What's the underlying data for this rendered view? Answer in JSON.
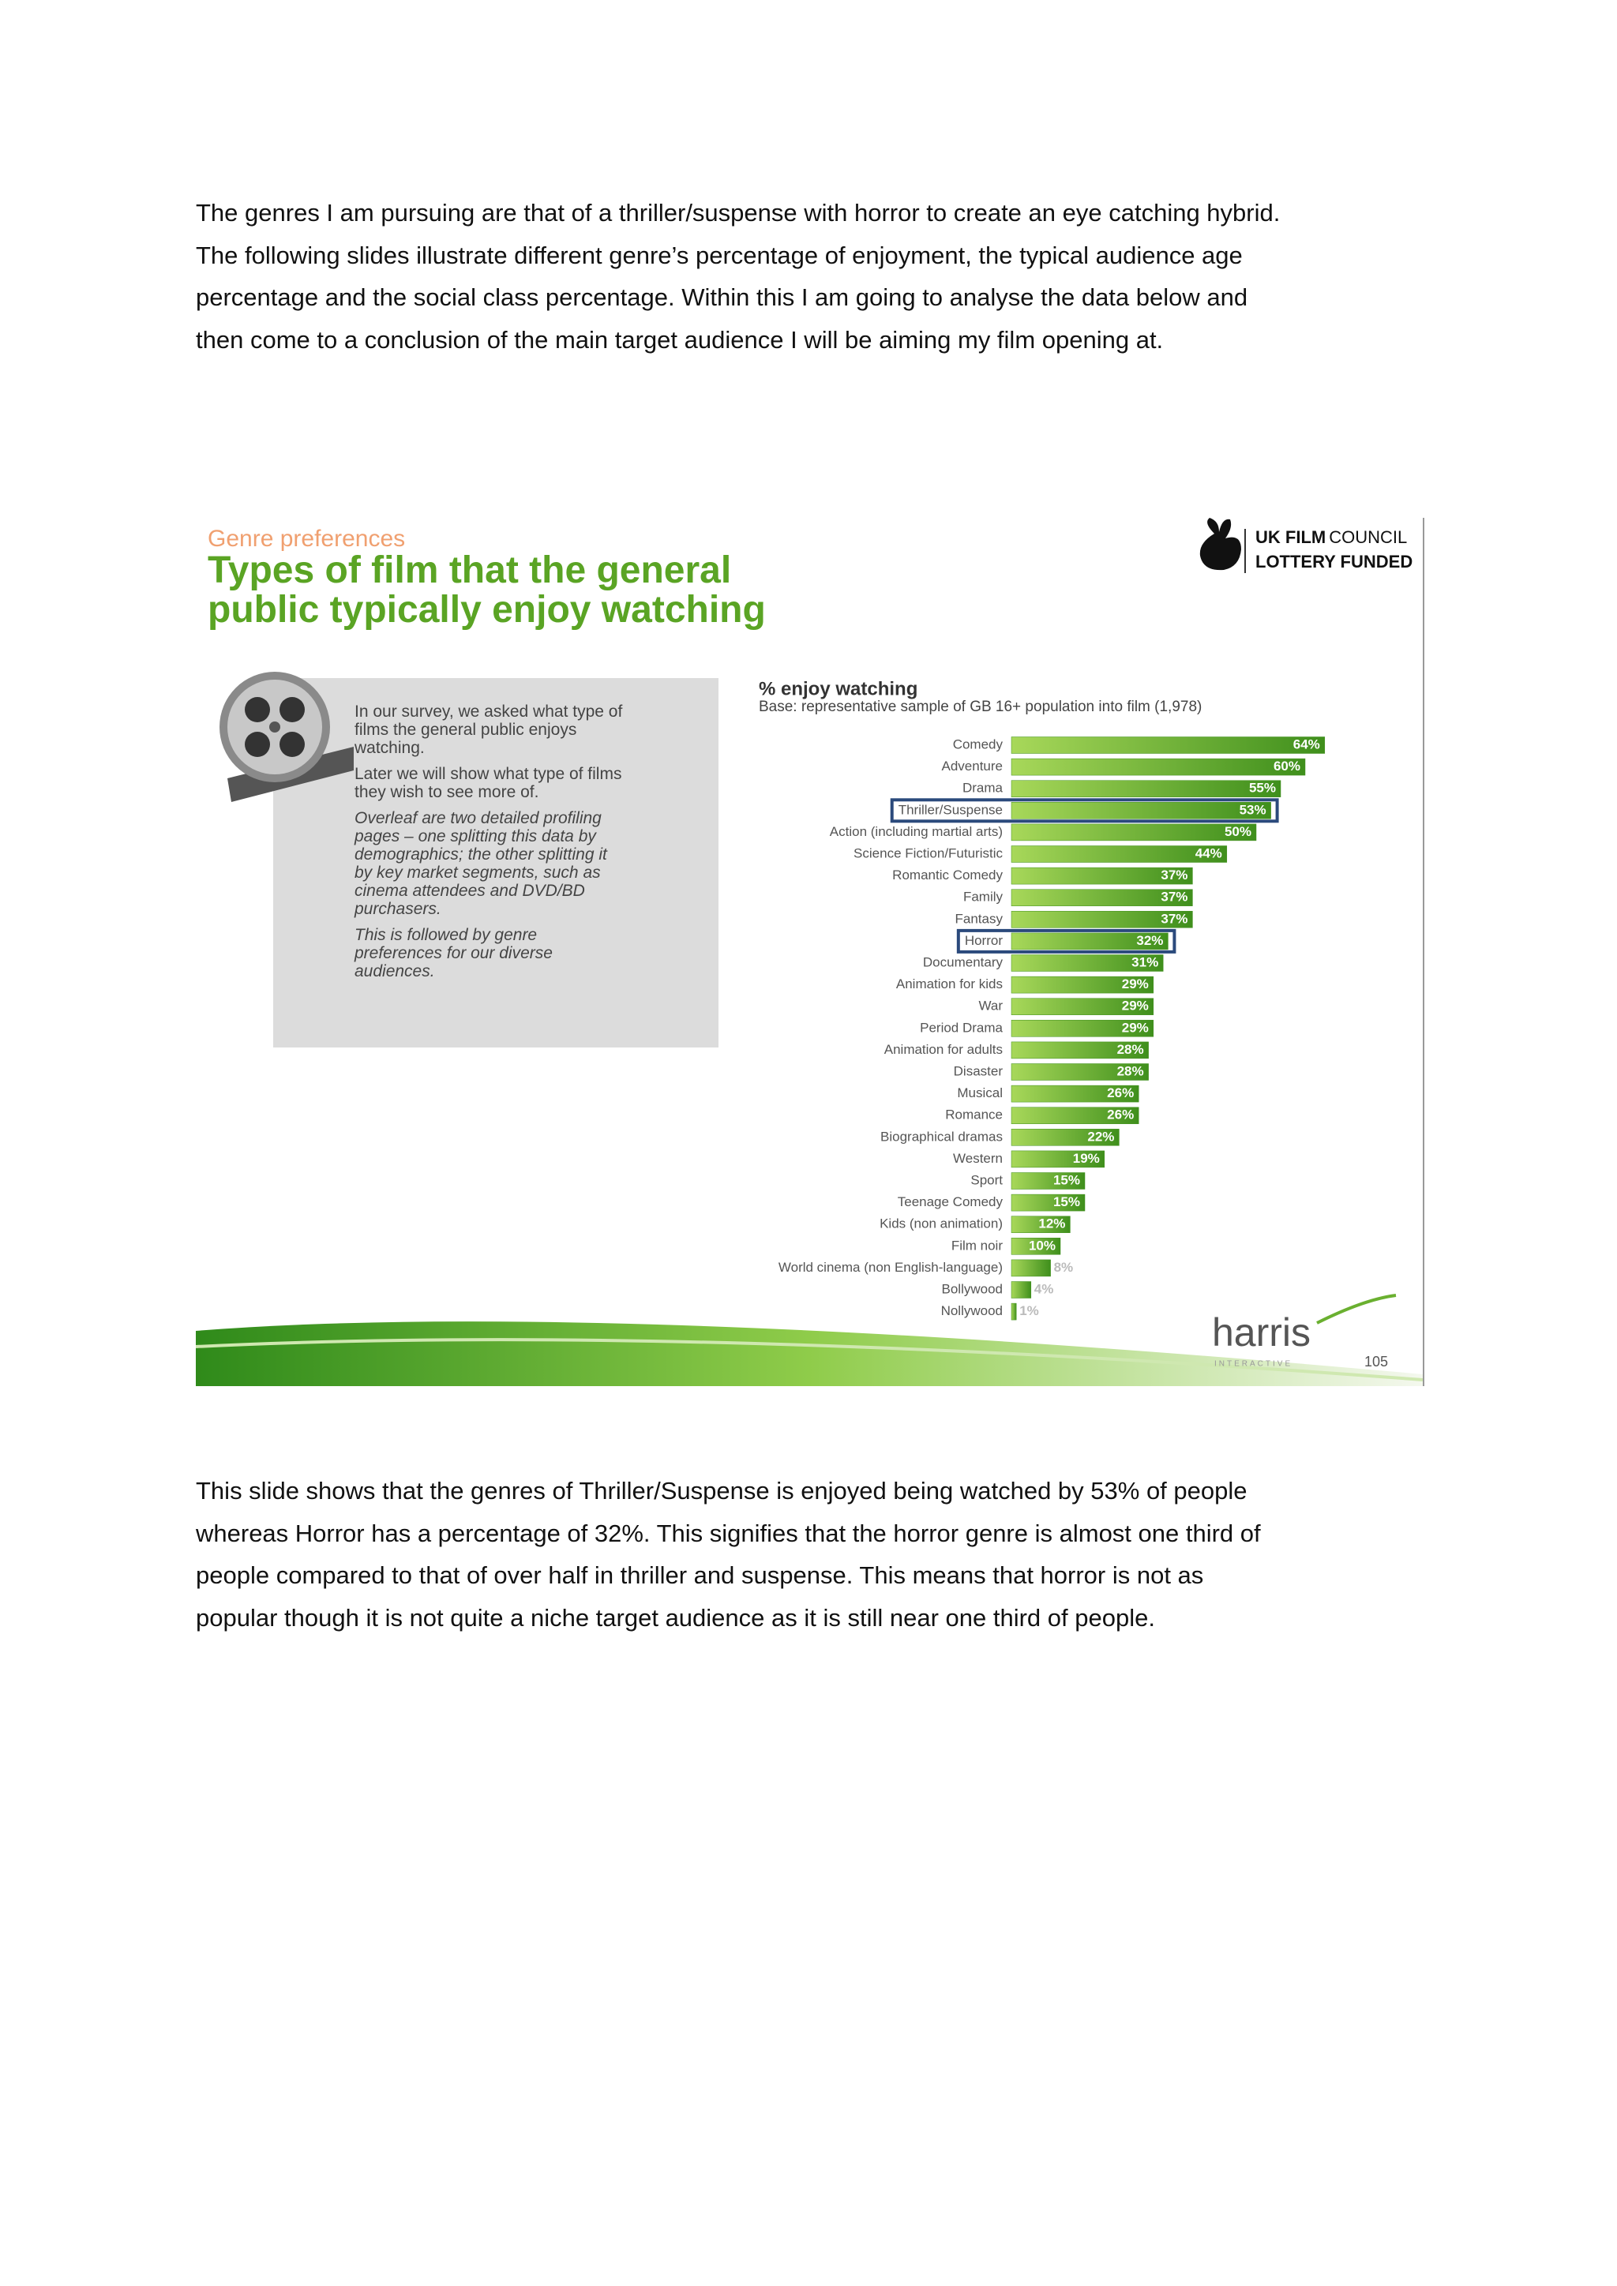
{
  "intro": {
    "lines": [
      "The genres I am pursuing are that of a thriller/suspense with horror to create an eye catching hybrid.",
      "The following slides illustrate different genre’s percentage of enjoyment, the typical audience age",
      "percentage and the social class percentage.  Within this I am going to analyse the data below and",
      "then come to a conclusion of the main target audience I will be aiming my film opening at."
    ]
  },
  "slide": {
    "kicker": "Genre preferences",
    "title": [
      "Types of film that the general",
      "public typically enjoy watching"
    ],
    "logo": {
      "strong": "UK FILM",
      "rest": "COUNCIL",
      "line2": "LOTTERY FUNDED"
    },
    "box": [
      [
        "In our survey, we asked what type of",
        "films the general public enjoys",
        "watching."
      ],
      [
        "Later we will show what type of films",
        "they wish to see more of."
      ],
      [
        "Overleaf are two detailed profiling",
        "pages – one splitting this data by",
        "demographics; the other splitting it",
        "by key market segments, such as",
        "cinema attendees and DVD/BD",
        "purchasers."
      ],
      [
        "This is followed by genre",
        "preferences for our diverse",
        "audiences."
      ]
    ],
    "brand": "harris",
    "brand_tagline": "INTERACTIVE",
    "page_number": "105"
  },
  "chart_data": {
    "type": "bar",
    "orientation": "horizontal",
    "title": "% enjoy watching",
    "subtitle": "Base: representative sample of GB 16+ population into film (1,978)",
    "categories": [
      "Comedy",
      "Adventure",
      "Drama",
      "Thriller/Suspense",
      "Action (including martial arts)",
      "Science Fiction/Futuristic",
      "Romantic Comedy",
      "Family",
      "Fantasy",
      "Horror",
      "Documentary",
      "Animation for kids",
      "War",
      "Period Drama",
      "Animation for adults",
      "Disaster",
      "Musical",
      "Romance",
      "Biographical dramas",
      "Western",
      "Sport",
      "Teenage Comedy",
      "Kids (non animation)",
      "Film noir",
      "World cinema (non English-language)",
      "Bollywood",
      "Nollywood"
    ],
    "values": [
      64,
      60,
      55,
      53,
      50,
      44,
      37,
      37,
      37,
      32,
      31,
      29,
      29,
      29,
      28,
      28,
      26,
      26,
      22,
      19,
      15,
      15,
      12,
      10,
      8,
      4,
      1
    ],
    "value_labels": [
      "64%",
      "60%",
      "55%",
      "53%",
      "50%",
      "44%",
      "37%",
      "37%",
      "37%",
      "32%",
      "31%",
      "29%",
      "29%",
      "29%",
      "28%",
      "28%",
      "26%",
      "26%",
      "22%",
      "19%",
      "15%",
      "15%",
      "12%",
      "10%",
      "8%",
      "4%",
      "1%"
    ],
    "color": "#3f8f1c",
    "highlight": [
      3,
      9
    ]
  },
  "outro": {
    "lines": [
      "This slide shows that the genres of Thriller/Suspense is enjoyed being watched by 53% of people",
      "whereas Horror has a percentage of 32%. This signifies that the horror genre is almost one third of",
      "people compared to that of over half in thriller and suspense. This means that horror is not as",
      "popular though it is not quite a niche target audience as it is still near one third of people."
    ]
  }
}
